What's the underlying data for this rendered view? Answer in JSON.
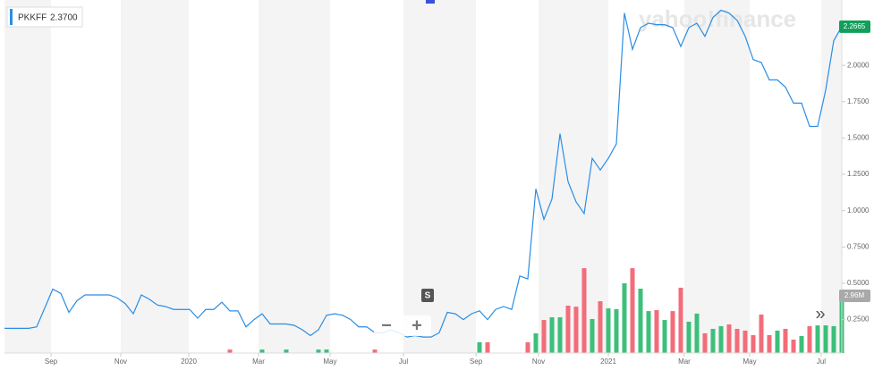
{
  "chart_data": {
    "type": "line",
    "quote": "2.3700",
    "x": [
      0,
      1,
      2,
      3,
      4,
      5,
      6,
      7,
      8,
      9,
      10,
      11,
      12,
      13,
      14,
      15,
      16,
      17,
      18,
      19,
      20,
      21,
      22,
      23,
      24,
      25,
      26,
      27,
      28,
      29,
      30,
      31,
      32,
      33,
      34,
      35,
      36,
      37,
      38,
      39,
      40,
      41,
      42,
      43,
      44,
      45,
      46,
      47,
      48,
      49,
      50,
      51,
      52,
      53,
      54,
      55,
      56,
      57,
      58,
      59,
      60,
      61,
      62,
      63,
      64,
      65,
      66,
      67,
      68,
      69,
      70,
      71,
      72,
      73,
      74,
      75,
      76,
      77,
      78,
      79,
      80,
      81,
      82,
      83,
      84,
      85,
      86,
      87,
      88,
      89,
      90,
      91,
      92,
      93,
      94,
      95,
      96,
      97,
      98,
      99,
      100,
      101,
      102,
      103,
      104
    ],
    "series": [
      {
        "name": "PKKFF",
        "color": "#2a8de4",
        "values": [
          0.19,
          0.19,
          0.19,
          0.19,
          0.2,
          0.33,
          0.46,
          0.43,
          0.3,
          0.38,
          0.42,
          0.42,
          0.42,
          0.42,
          0.4,
          0.36,
          0.29,
          0.42,
          0.39,
          0.35,
          0.34,
          0.32,
          0.32,
          0.32,
          0.26,
          0.32,
          0.32,
          0.37,
          0.31,
          0.31,
          0.2,
          0.25,
          0.29,
          0.22,
          0.22,
          0.22,
          0.21,
          0.18,
          0.14,
          0.18,
          0.28,
          0.29,
          0.28,
          0.25,
          0.2,
          0.2,
          0.16,
          0.16,
          0.18,
          0.16,
          0.13,
          0.14,
          0.13,
          0.13,
          0.16,
          0.3,
          0.29,
          0.25,
          0.29,
          0.31,
          0.25,
          0.32,
          0.34,
          0.32,
          0.55,
          0.53,
          1.15,
          0.94,
          1.08,
          1.53,
          1.2,
          1.06,
          0.98,
          1.36,
          1.28,
          1.36,
          1.46,
          2.36,
          2.11,
          2.26,
          2.29,
          2.28,
          2.28,
          2.26,
          2.13,
          2.26,
          2.29,
          2.2,
          2.33,
          2.38,
          2.36,
          2.31,
          2.2,
          2.04,
          2.02,
          1.9,
          1.9,
          1.85,
          1.74,
          1.74,
          1.58,
          1.58,
          1.83,
          2.17,
          2.2665
        ]
      },
      {
        "name": "Volume",
        "type": "bar",
        "axis": "y2",
        "up_color": "#3dbf7b",
        "down_color": "#f26d7a",
        "values": [
          null,
          null,
          null,
          null,
          null,
          null,
          null,
          null,
          null,
          null,
          null,
          null,
          null,
          null,
          null,
          null,
          null,
          null,
          null,
          null,
          null,
          null,
          null,
          null,
          null,
          null,
          null,
          null,
          180000,
          null,
          null,
          null,
          180000,
          null,
          null,
          180000,
          null,
          null,
          null,
          180000,
          180000,
          null,
          null,
          null,
          null,
          null,
          180000,
          null,
          null,
          null,
          null,
          null,
          null,
          null,
          null,
          null,
          null,
          null,
          null,
          555000,
          555000,
          null,
          null,
          null,
          null,
          555000,
          1020000,
          1710000,
          1850000,
          1850000,
          2450000,
          2400000,
          4390000,
          1760000,
          2680000,
          2310000,
          2270000,
          3610000,
          4390000,
          3330000,
          2170000,
          2220000,
          1710000,
          2170000,
          3380000,
          1620000,
          2040000,
          1020000,
          1250000,
          1390000,
          1480000,
          1250000,
          1160000,
          925000,
          1990000,
          925000,
          1160000,
          1250000,
          694000,
          879000,
          1390000,
          1430000,
          1430000,
          1390000,
          2960000
        ]
      }
    ],
    "last_price": 2.2665,
    "last_volume": {
      "value": 2960000,
      "label": "2.96M"
    },
    "xlim": [
      0,
      104
    ],
    "xticks": [
      {
        "value": 5.78,
        "label": "Sep"
      },
      {
        "value": 14.44,
        "label": "Nov"
      },
      {
        "value": 22.89,
        "label": "2020"
      },
      {
        "value": 31.56,
        "label": "Mar"
      },
      {
        "value": 40.44,
        "label": "May"
      },
      {
        "value": 49.56,
        "label": "Jul"
      },
      {
        "value": 58.56,
        "label": "Sep"
      },
      {
        "value": 66.33,
        "label": "Nov"
      },
      {
        "value": 75,
        "label": "2021"
      },
      {
        "value": 84.44,
        "label": "Mar"
      },
      {
        "value": 92.56,
        "label": "May"
      },
      {
        "value": 101.44,
        "label": "Jul"
      }
    ],
    "ylim": [
      0.02,
      2.45
    ],
    "yticks": [
      {
        "value": 0.25,
        "label": "0.2500"
      },
      {
        "value": 0.5,
        "label": "0.5000"
      },
      {
        "value": 0.75,
        "label": "0.7500"
      },
      {
        "value": 1,
        "label": "1.0000"
      },
      {
        "value": 1.25,
        "label": "1.2500"
      },
      {
        "value": 1.5,
        "label": "1.5000"
      },
      {
        "value": 1.75,
        "label": "1.7500"
      },
      {
        "value": 2,
        "label": "2.0000"
      }
    ],
    "y2lim": [
      0,
      18270000
    ],
    "band_color": "#f4f4f4"
  },
  "ui": {
    "watermark": "yahoo!finance",
    "s_button": "S",
    "zoom_out": "−",
    "zoom_in": "+",
    "more": "»"
  }
}
